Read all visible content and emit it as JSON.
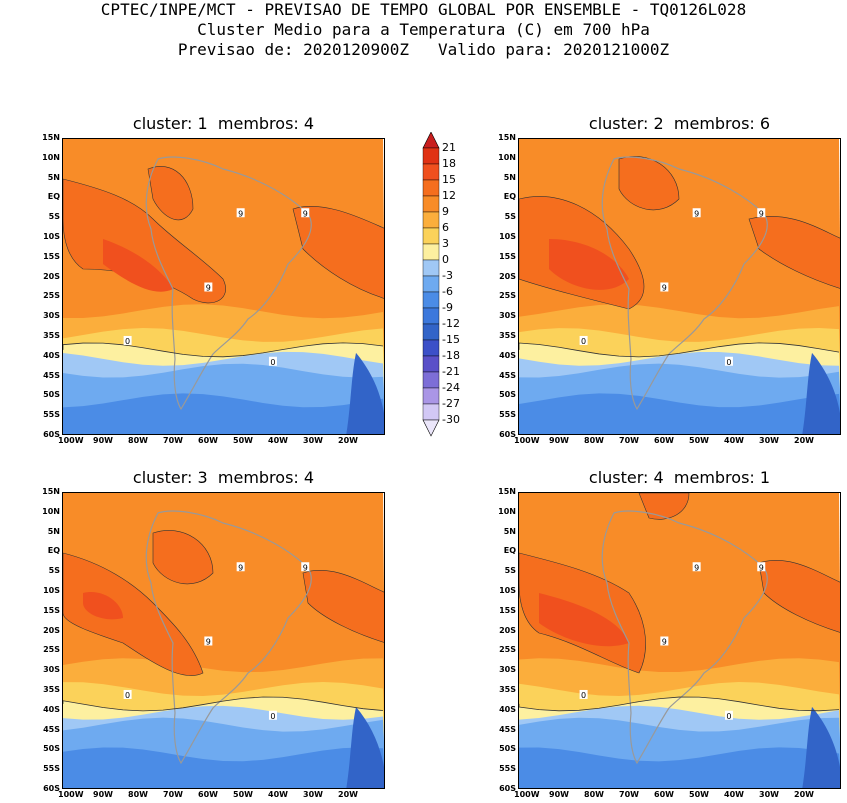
{
  "header": {
    "line1": "CPTEC/INPE/MCT - PREVISAO DE TEMPO GLOBAL POR ENSEMBLE - TQ0126L028",
    "line2": "Cluster Medio para a Temperatura (C) em 700 hPa",
    "line3": "Previsao de: 2020120900Z   Valido para: 2020121000Z"
  },
  "panels": [
    {
      "title": "cluster: 1  membros: 4"
    },
    {
      "title": "cluster: 2  membros: 6"
    },
    {
      "title": "cluster: 3  membros: 4"
    },
    {
      "title": "cluster: 4  membros: 1"
    }
  ],
  "lat_labels": [
    "15N",
    "10N",
    "5N",
    "EQ",
    "5S",
    "10S",
    "15S",
    "20S",
    "25S",
    "30S",
    "35S",
    "40S",
    "45S",
    "50S",
    "55S",
    "60S"
  ],
  "lon_labels": [
    "100W",
    "90W",
    "80W",
    "70W",
    "60W",
    "50W",
    "40W",
    "30W",
    "20W"
  ],
  "colorbar": {
    "labels": [
      "21",
      "18",
      "15",
      "12",
      "9",
      "6",
      "3",
      "0",
      "-3",
      "-6",
      "-9",
      "-12",
      "-15",
      "-18",
      "-21",
      "-24",
      "-27",
      "-30"
    ],
    "colors": [
      "#c81e1e",
      "#e03214",
      "#f0501e",
      "#f56e1e",
      "#f88c28",
      "#fbae3c",
      "#fbd25a",
      "#fdf0a0",
      "#a0c8f5",
      "#6eaaf0",
      "#4b8ce6",
      "#3c78dc",
      "#3264c8",
      "#3c50c8",
      "#5a50c8",
      "#7d6ed7",
      "#aa96e6",
      "#d2c8f5",
      "#ebe6fa"
    ]
  },
  "contour_labels": {
    "nine": "9",
    "zero": "0"
  }
}
